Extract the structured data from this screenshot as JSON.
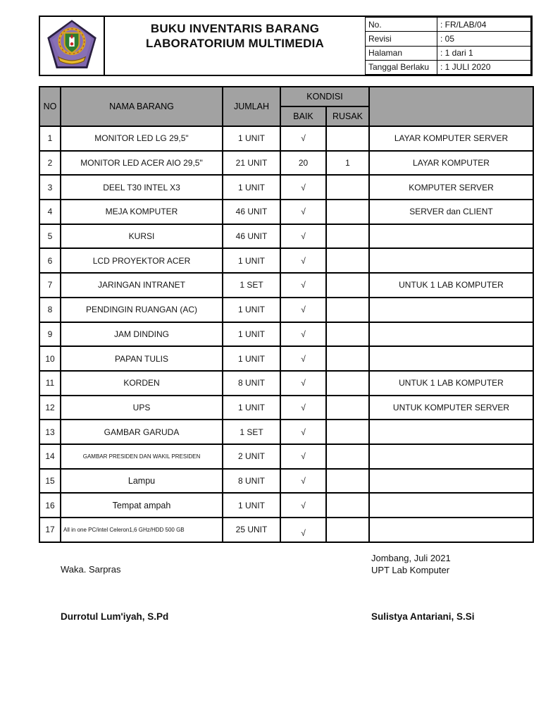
{
  "header": {
    "title_line1": "BUKU INVENTARIS BARANG",
    "title_line2": "LABORATORIUM MULTIMEDIA",
    "logo": "school-crest",
    "info": [
      {
        "label": "No.",
        "value": ": FR/LAB/04"
      },
      {
        "label": "Revisi",
        "value": ": 05"
      },
      {
        "label": "Halaman",
        "value": ": 1 dari 1"
      },
      {
        "label": "Tanggal Berlaku",
        "value": ": 1 JULI 2020"
      }
    ]
  },
  "table": {
    "headers": {
      "no": "NO",
      "nama": "NAMA BARANG",
      "jumlah": "JUMLAH",
      "kondisi": "KONDISI",
      "baik": "BAIK",
      "rusak": "RUSAK",
      "keterangan": ""
    },
    "rows": [
      {
        "no": "1",
        "nama": "MONITOR LED LG 29,5\"",
        "jumlah": "1 UNIT",
        "baik": "√",
        "rusak": "",
        "keterangan": "LAYAR KOMPUTER SERVER"
      },
      {
        "no": "2",
        "nama": "MONITOR LED ACER AIO 29,5\"",
        "jumlah": "21 UNIT",
        "baik": "20",
        "rusak": "1",
        "keterangan": "LAYAR KOMPUTER"
      },
      {
        "no": "3",
        "nama": "DEEL T30 INTEL X3",
        "jumlah": "1 UNIT",
        "baik": "√",
        "rusak": "",
        "keterangan": "KOMPUTER SERVER"
      },
      {
        "no": "4",
        "nama": "MEJA KOMPUTER",
        "jumlah": "46 UNIT",
        "baik": "√",
        "rusak": "",
        "keterangan": "SERVER dan CLIENT"
      },
      {
        "no": "5",
        "nama": "KURSI",
        "jumlah": "46 UNIT",
        "baik": "√",
        "rusak": "",
        "keterangan": ""
      },
      {
        "no": "6",
        "nama": "LCD PROYEKTOR ACER",
        "jumlah": "1 UNIT",
        "baik": "√",
        "rusak": "",
        "keterangan": ""
      },
      {
        "no": "7",
        "nama": "JARINGAN INTRANET",
        "jumlah": "1 SET",
        "baik": "√",
        "rusak": "",
        "keterangan": "UNTUK 1 LAB KOMPUTER"
      },
      {
        "no": "8",
        "nama": "PENDINGIN RUANGAN (AC)",
        "jumlah": "1 UNIT",
        "baik": "√",
        "rusak": "",
        "keterangan": ""
      },
      {
        "no": "9",
        "nama": "JAM DINDING",
        "jumlah": "1 UNIT",
        "baik": "√",
        "rusak": "",
        "keterangan": ""
      },
      {
        "no": "10",
        "nama": "PAPAN TULIS",
        "jumlah": "1 UNIT",
        "baik": "√",
        "rusak": "",
        "keterangan": ""
      },
      {
        "no": "11",
        "nama": "KORDEN",
        "jumlah": "8 UNIT",
        "baik": "√",
        "rusak": "",
        "keterangan": "UNTUK 1 LAB KOMPUTER"
      },
      {
        "no": "12",
        "nama": "UPS",
        "jumlah": "1 UNIT",
        "baik": "√",
        "rusak": "",
        "keterangan": "UNTUK KOMPUTER SERVER"
      },
      {
        "no": "13",
        "nama": "GAMBAR GARUDA",
        "jumlah": "1 SET",
        "baik": "√",
        "rusak": "",
        "keterangan": ""
      },
      {
        "no": "14",
        "nama": "GAMBAR PRESIDEN DAN WAKIL PRESIDEN",
        "jumlah": "2 UNIT",
        "baik": "√",
        "rusak": "",
        "keterangan": ""
      },
      {
        "no": "15",
        "nama": "Lampu",
        "jumlah": "8 UNIT",
        "baik": "√",
        "rusak": "",
        "keterangan": ""
      },
      {
        "no": "16",
        "nama": "Tempat ampah",
        "jumlah": "1 UNIT",
        "baik": "√",
        "rusak": "",
        "keterangan": ""
      },
      {
        "no": "17",
        "nama": "All in one PC/intel Celeron1,6 GHz/HDD 500 GB",
        "jumlah": "25 UNIT",
        "baik": "√",
        "rusak": "",
        "keterangan": ""
      }
    ]
  },
  "footer": {
    "left_role": "Waka. Sarpras",
    "left_name": "Durrotul Lum'iyah, S.Pd",
    "right_place_date": "Jombang, Juli 2021",
    "right_org": "UPT Lab Komputer",
    "right_name": "Sulistya Antariani, S.Si"
  },
  "colors": {
    "table_header_bg": "#a2a2a2",
    "border": "#000000",
    "logo_purple": "#7f66ae",
    "logo_gold": "#d9a520",
    "logo_green": "#2e7d32"
  }
}
